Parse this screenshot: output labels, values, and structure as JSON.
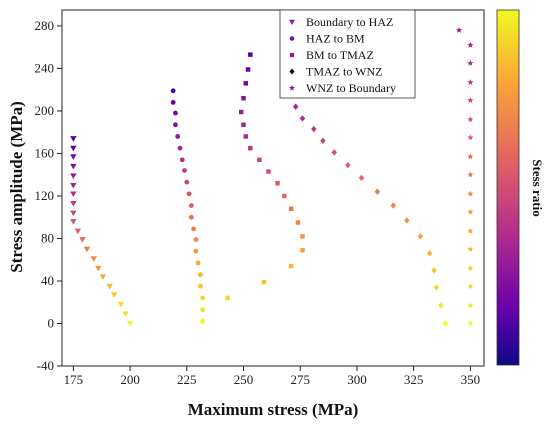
{
  "chart_data": {
    "type": "scatter",
    "xlabel": "Maximum stress (MPa)",
    "ylabel": "Stress amplitude (MPa)",
    "xlim": [
      170,
      356
    ],
    "ylim": [
      -40,
      295
    ],
    "xticks": [
      175,
      200,
      225,
      250,
      275,
      300,
      325,
      350
    ],
    "yticks": [
      -40,
      0,
      40,
      80,
      120,
      160,
      200,
      240,
      280
    ],
    "grid": false,
    "legend_position": "top-right",
    "colorbar": {
      "label": "Stess ratio",
      "colors": [
        "#f0f921",
        "#fca636",
        "#e16462",
        "#b12a90",
        "#6a00a8",
        "#0d0887"
      ]
    },
    "series": [
      {
        "name": "Boundary to HAZ",
        "marker": "triangle-down",
        "points": [
          [
            175,
            174
          ],
          [
            175,
            165
          ],
          [
            175,
            157
          ],
          [
            175,
            148
          ],
          [
            175,
            139
          ],
          [
            175,
            130
          ],
          [
            175,
            122
          ],
          [
            175,
            113
          ],
          [
            175,
            104
          ],
          [
            175,
            96
          ],
          [
            177,
            87
          ],
          [
            179,
            79
          ],
          [
            181,
            70
          ],
          [
            184,
            61
          ],
          [
            186,
            52
          ],
          [
            188,
            44
          ],
          [
            191,
            35
          ],
          [
            193,
            27
          ],
          [
            196,
            18
          ],
          [
            198,
            9
          ],
          [
            200,
            0
          ]
        ]
      },
      {
        "name": "HAZ to BM",
        "marker": "circle",
        "points": [
          [
            219,
            219
          ],
          [
            219,
            208
          ],
          [
            220,
            198
          ],
          [
            220,
            187
          ],
          [
            221,
            176
          ],
          [
            222,
            165
          ],
          [
            223,
            154
          ],
          [
            224,
            144
          ],
          [
            225,
            133
          ],
          [
            226,
            122
          ],
          [
            227,
            111
          ],
          [
            227,
            100
          ],
          [
            228,
            89
          ],
          [
            229,
            79
          ],
          [
            229,
            68
          ],
          [
            230,
            57
          ],
          [
            231,
            46
          ],
          [
            231,
            35
          ],
          [
            232,
            24
          ],
          [
            232,
            13
          ],
          [
            232,
            2
          ]
        ]
      },
      {
        "name": "BM to TMAZ",
        "marker": "square",
        "points": [
          [
            253,
            253
          ],
          [
            252,
            239
          ],
          [
            251,
            226
          ],
          [
            250,
            212
          ],
          [
            249,
            199
          ],
          [
            250,
            187
          ],
          [
            251,
            176
          ],
          [
            253,
            165
          ],
          [
            257,
            154
          ],
          [
            261,
            143
          ],
          [
            265,
            132
          ],
          [
            268,
            120
          ],
          [
            271,
            108
          ],
          [
            274,
            95
          ],
          [
            276,
            82
          ],
          [
            276,
            69
          ],
          [
            271,
            54
          ],
          [
            259,
            39
          ],
          [
            243,
            24
          ]
        ]
      },
      {
        "name": "TMAZ to WNZ",
        "marker": "diamond",
        "points": [
          [
            273,
            204
          ],
          [
            276,
            193
          ],
          [
            281,
            183
          ],
          [
            285,
            172
          ],
          [
            290,
            161
          ],
          [
            296,
            149
          ],
          [
            302,
            137
          ],
          [
            309,
            124
          ],
          [
            316,
            111
          ],
          [
            322,
            97
          ],
          [
            328,
            82
          ],
          [
            332,
            66
          ],
          [
            334,
            50
          ],
          [
            335,
            34
          ],
          [
            337,
            17
          ],
          [
            339,
            0
          ]
        ]
      },
      {
        "name": "WNZ to Boundary",
        "marker": "star",
        "points": [
          [
            345,
            276
          ],
          [
            350,
            262
          ],
          [
            350,
            245
          ],
          [
            350,
            227
          ],
          [
            350,
            210
          ],
          [
            350,
            192
          ],
          [
            350,
            175
          ],
          [
            350,
            157
          ],
          [
            350,
            140
          ],
          [
            350,
            122
          ],
          [
            350,
            105
          ],
          [
            350,
            87
          ],
          [
            350,
            70
          ],
          [
            350,
            52
          ],
          [
            350,
            35
          ],
          [
            350,
            17
          ],
          [
            350,
            0
          ]
        ]
      }
    ]
  }
}
